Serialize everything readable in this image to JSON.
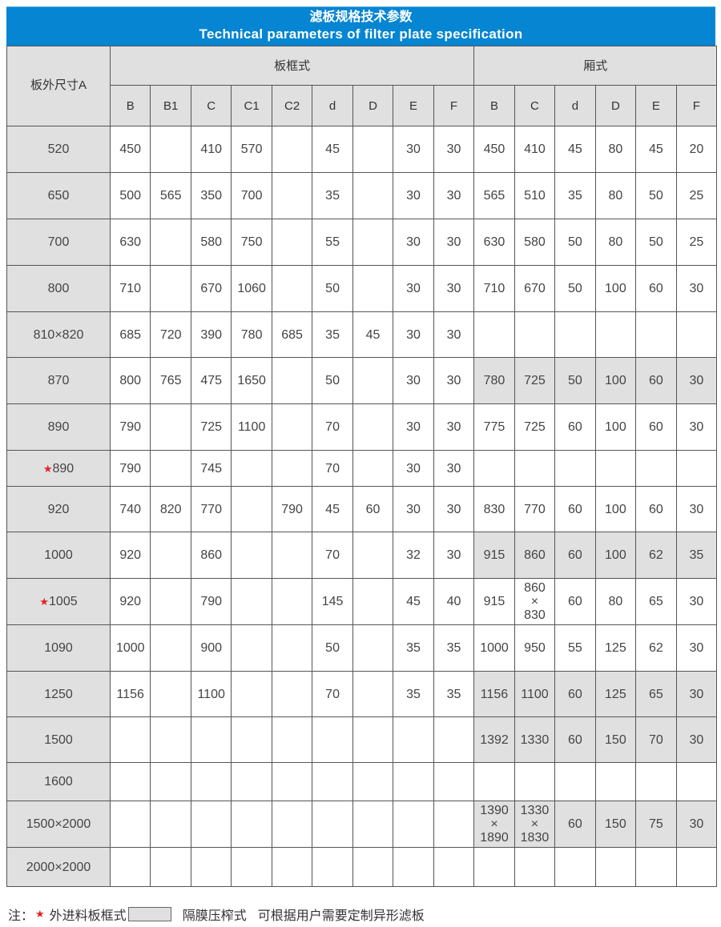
{
  "title": {
    "zh": "滤板规格技术参数",
    "en": "Technical parameters of filter plate specification"
  },
  "header": {
    "size_label": "板外尺寸A",
    "group_frame": "板框式",
    "group_chamber": "厢式",
    "frame_cols": [
      "B",
      "B1",
      "C",
      "C1",
      "C2",
      "d",
      "D",
      "E",
      "F"
    ],
    "chamber_cols": [
      "B",
      "C",
      "d",
      "D",
      "E",
      "F"
    ]
  },
  "colors": {
    "title_bg": "#0585d2",
    "highlight": "#e0e0e0",
    "star": "#e52020"
  },
  "rows": [
    {
      "a": "520",
      "star": false,
      "frame": [
        "450",
        "",
        "410",
        "570",
        "",
        "45",
        "",
        "30",
        "30"
      ],
      "chamber": [
        "450",
        "410",
        "45",
        "80",
        "45",
        "20"
      ],
      "chamber_highlight": false
    },
    {
      "a": "650",
      "star": false,
      "frame": [
        "500",
        "565",
        "350",
        "700",
        "",
        "35",
        "",
        "30",
        "30"
      ],
      "chamber": [
        "565",
        "510",
        "35",
        "80",
        "50",
        "25"
      ],
      "chamber_highlight": false
    },
    {
      "a": "700",
      "star": false,
      "frame": [
        "630",
        "",
        "580",
        "750",
        "",
        "55",
        "",
        "30",
        "30"
      ],
      "chamber": [
        "630",
        "580",
        "50",
        "80",
        "50",
        "25"
      ],
      "chamber_highlight": false
    },
    {
      "a": "800",
      "star": false,
      "frame": [
        "710",
        "",
        "670",
        "1060",
        "",
        "50",
        "",
        "30",
        "30"
      ],
      "chamber": [
        "710",
        "670",
        "50",
        "100",
        "60",
        "30"
      ],
      "chamber_highlight": false
    },
    {
      "a": "810×820",
      "star": false,
      "frame": [
        "685",
        "720",
        "390",
        "780",
        "685",
        "35",
        "45",
        "30",
        "30"
      ],
      "chamber": [
        "",
        "",
        "",
        "",
        "",
        ""
      ],
      "chamber_highlight": false
    },
    {
      "a": "870",
      "star": false,
      "frame": [
        "800",
        "765",
        "475",
        "1650",
        "",
        "50",
        "",
        "30",
        "30"
      ],
      "chamber": [
        "780",
        "725",
        "50",
        "100",
        "60",
        "30"
      ],
      "chamber_highlight": true
    },
    {
      "a": "890",
      "star": false,
      "frame": [
        "790",
        "",
        "725",
        "1100",
        "",
        "70",
        "",
        "30",
        "30"
      ],
      "chamber": [
        "775",
        "725",
        "60",
        "100",
        "60",
        "30"
      ],
      "chamber_highlight": false
    },
    {
      "a": "890",
      "star": true,
      "frame": [
        "790",
        "",
        "745",
        "",
        "",
        "70",
        "",
        "30",
        "30"
      ],
      "chamber": [
        "",
        "",
        "",
        "",
        "",
        ""
      ],
      "chamber_highlight": false
    },
    {
      "a": "920",
      "star": false,
      "frame": [
        "740",
        "820",
        "770",
        "",
        "790",
        "45",
        "60",
        "30",
        "30"
      ],
      "chamber": [
        "830",
        "770",
        "60",
        "100",
        "60",
        "30"
      ],
      "chamber_highlight": false
    },
    {
      "a": "1000",
      "star": false,
      "frame": [
        "920",
        "",
        "860",
        "",
        "",
        "70",
        "",
        "32",
        "30"
      ],
      "chamber": [
        "915",
        "860",
        "60",
        "100",
        "62",
        "35"
      ],
      "chamber_highlight": true
    },
    {
      "a": "1005",
      "star": true,
      "frame": [
        "920",
        "",
        "790",
        "",
        "",
        "145",
        "",
        "45",
        "40"
      ],
      "chamber": [
        "915",
        "860\n×\n830",
        "60",
        "80",
        "65",
        "30"
      ],
      "chamber_highlight": false
    },
    {
      "a": "1090",
      "star": false,
      "frame": [
        "1000",
        "",
        "900",
        "",
        "",
        "50",
        "",
        "35",
        "35"
      ],
      "chamber": [
        "1000",
        "950",
        "55",
        "125",
        "62",
        "30"
      ],
      "chamber_highlight": false
    },
    {
      "a": "1250",
      "star": false,
      "frame": [
        "1156",
        "",
        "1100",
        "",
        "",
        "70",
        "",
        "35",
        "35"
      ],
      "chamber": [
        "1156",
        "1100",
        "60",
        "125",
        "65",
        "30"
      ],
      "chamber_highlight": true
    },
    {
      "a": "1500",
      "star": false,
      "frame": [
        "",
        "",
        "",
        "",
        "",
        "",
        "",
        "",
        ""
      ],
      "chamber": [
        "1392",
        "1330",
        "60",
        "150",
        "70",
        "30"
      ],
      "chamber_highlight": true
    },
    {
      "a": "1600",
      "star": false,
      "frame": [
        "",
        "",
        "",
        "",
        "",
        "",
        "",
        "",
        ""
      ],
      "chamber": [
        "",
        "",
        "",
        "",
        "",
        ""
      ],
      "chamber_highlight": false
    },
    {
      "a": "1500×2000",
      "star": false,
      "frame": [
        "",
        "",
        "",
        "",
        "",
        "",
        "",
        "",
        ""
      ],
      "chamber": [
        "1390\n×\n1890",
        "1330\n×\n1830",
        "60",
        "150",
        "75",
        "30"
      ],
      "chamber_highlight": true
    },
    {
      "a": "2000×2000",
      "star": false,
      "frame": [
        "",
        "",
        "",
        "",
        "",
        "",
        "",
        "",
        ""
      ],
      "chamber": [
        "",
        "",
        "",
        "",
        "",
        ""
      ],
      "chamber_highlight": false
    }
  ],
  "note": {
    "prefix": "注：",
    "star_text": "外进料板框式",
    "gray_text": "隔膜压榨式",
    "custom_text": "可根据用户需要定制异形滤板"
  }
}
